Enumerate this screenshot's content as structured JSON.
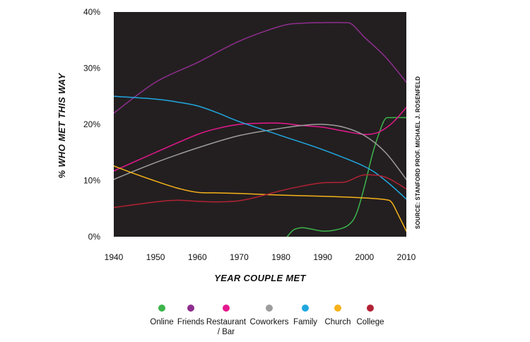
{
  "chart_data": {
    "type": "line",
    "ylabel": "% WHO MET THIS WAY",
    "xlabel": "YEAR COUPLE MET",
    "source": "SOURCE: STANFORD PROF. MICHAEL J. ROSENFELD",
    "xlim": [
      1940,
      2010
    ],
    "ylim": [
      0,
      40
    ],
    "x_ticks": [
      1940,
      1950,
      1960,
      1970,
      1980,
      1990,
      2000,
      2010
    ],
    "y_ticks": [
      0,
      10,
      20,
      30,
      40
    ],
    "y_tick_labels": [
      "0%",
      "10%",
      "20%",
      "30%",
      "40%"
    ],
    "plot_background": "#231f20",
    "legend_position": "bottom",
    "series": [
      {
        "name": "Online",
        "color": "#3cb44b",
        "x": [
          1981.5,
          1983,
          1985,
          1987,
          1990,
          1993,
          1996,
          1998,
          2000,
          2002,
          2004,
          2005,
          2006,
          2010
        ],
        "y": [
          0,
          1.2,
          1.6,
          1.4,
          1.0,
          1.2,
          2.0,
          4.0,
          9.0,
          15.0,
          19.5,
          21.0,
          21.2,
          21.2
        ]
      },
      {
        "name": "Friends",
        "color": "#8e2e8e",
        "x": [
          1940,
          1950,
          1960,
          1970,
          1980,
          1985,
          1990,
          1995,
          1997,
          2000,
          2005,
          2010
        ],
        "y": [
          22.0,
          27.5,
          31.0,
          34.8,
          37.5,
          38.0,
          38.1,
          38.1,
          37.8,
          35.5,
          32.0,
          27.5
        ]
      },
      {
        "name": "Restaurant\n/ Bar",
        "color": "#e6188e",
        "x": [
          1940,
          1950,
          1960,
          1965,
          1970,
          1975,
          1980,
          1985,
          1990,
          1995,
          2000,
          2003,
          2005,
          2007,
          2010
        ],
        "y": [
          11.7,
          15.0,
          18.2,
          19.3,
          20.0,
          20.2,
          20.2,
          19.8,
          19.5,
          18.8,
          18.2,
          18.5,
          19.3,
          20.5,
          23.0
        ]
      },
      {
        "name": "Coworkers",
        "color": "#9d9d9d",
        "x": [
          1940,
          1950,
          1960,
          1970,
          1980,
          1985,
          1990,
          1995,
          2000,
          2005,
          2010
        ],
        "y": [
          10.2,
          13.2,
          15.8,
          18.0,
          19.3,
          19.8,
          20.0,
          19.5,
          18.0,
          15.0,
          10.2
        ]
      },
      {
        "name": "Family",
        "color": "#20a7e0",
        "x": [
          1940,
          1950,
          1955,
          1960,
          1965,
          1970,
          1980,
          1990,
          2000,
          2005,
          2010
        ],
        "y": [
          25.0,
          24.5,
          24.0,
          23.3,
          22.0,
          20.5,
          18.0,
          15.5,
          12.5,
          10.0,
          6.7
        ]
      },
      {
        "name": "Church",
        "color": "#f6b21a",
        "x": [
          1940,
          1945,
          1950,
          1955,
          1960,
          1965,
          1970,
          1980,
          1990,
          2000,
          2005,
          2006.5,
          2008,
          2010
        ],
        "y": [
          12.6,
          11.2,
          9.9,
          8.7,
          7.9,
          7.8,
          7.7,
          7.4,
          7.2,
          6.9,
          6.6,
          6.1,
          4.0,
          1.0
        ]
      },
      {
        "name": "College",
        "color": "#b22234",
        "x": [
          1940,
          1950,
          1955,
          1960,
          1965,
          1970,
          1975,
          1980,
          1985,
          1990,
          1995,
          1997,
          2000,
          2005,
          2010
        ],
        "y": [
          5.2,
          6.2,
          6.5,
          6.3,
          6.2,
          6.4,
          7.2,
          8.2,
          9.0,
          9.6,
          9.7,
          10.2,
          11.0,
          10.6,
          8.5
        ]
      }
    ]
  }
}
